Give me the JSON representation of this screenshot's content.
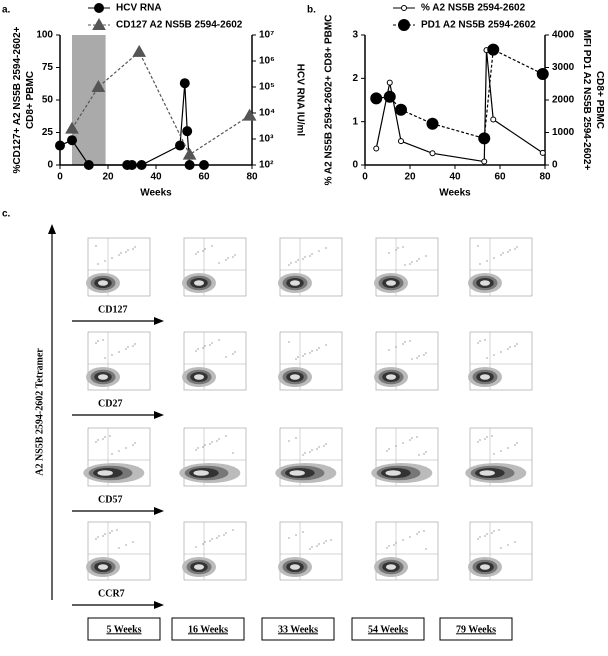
{
  "chart_data": [
    {
      "type": "line",
      "panel_label": "a.",
      "xlabel": "Weeks",
      "ylabel": [
        "%CD127+ A2 NS5B 2594-2602+",
        "CD8+ PBMC"
      ],
      "y2label": [
        "HCV RNA IU/ml"
      ],
      "xlim": [
        0,
        80
      ],
      "xticks": [
        0,
        20,
        40,
        60,
        80
      ],
      "ylim": [
        0,
        100
      ],
      "yticks": [
        0,
        25,
        50,
        75,
        100
      ],
      "y2lim": [
        100,
        10000000
      ],
      "y2log": true,
      "y2ticks": [
        {
          "value": 100,
          "label": "10²"
        },
        {
          "value": 1000,
          "label": "10³"
        },
        {
          "value": 10000,
          "label": "10⁴"
        },
        {
          "value": 100000,
          "label": "10⁵"
        },
        {
          "value": 1000000,
          "label": "10⁶"
        },
        {
          "value": 10000000,
          "label": "10⁷"
        }
      ],
      "shade": [
        5,
        19
      ],
      "shade_color": "#aaaaaa",
      "legend": "top",
      "series": [
        {
          "name": "HCV RNA",
          "axis": "y2",
          "color": "#000000",
          "marker": "circle",
          "marker_fill": "filled",
          "line_style": "solid",
          "x": [
            0,
            5,
            12,
            28,
            30,
            34,
            50,
            52,
            53,
            54,
            60
          ],
          "values": [
            560,
            900,
            100,
            100,
            100,
            100,
            560,
            140000,
            2000,
            100,
            100
          ]
        },
        {
          "name": "CD127 A2 NS5B 2594-2602",
          "color": "#555555",
          "marker": "triangle",
          "marker_fill": "filled",
          "line_style": "dashed",
          "x": [
            5,
            16,
            33,
            54,
            79
          ],
          "values": [
            28,
            60,
            87,
            8,
            38
          ]
        }
      ]
    },
    {
      "type": "line",
      "panel_label": "b.",
      "xlabel": "Weeks",
      "ylabel": [
        "% A2 NS5B 2594-2602+ CD8+ PBMC"
      ],
      "y2label": [
        "MFI PD1 A2 NS5B 2594-2602+",
        "CD8+ PBMC"
      ],
      "xlim": [
        0,
        80
      ],
      "xticks": [
        0,
        20,
        40,
        60,
        80
      ],
      "ylim": [
        0,
        3
      ],
      "yticks": [
        0,
        1,
        2,
        3
      ],
      "y2lim": [
        0,
        4000
      ],
      "y2ticks": [
        0,
        1000,
        2000,
        3000,
        4000
      ],
      "legend": "top",
      "series": [
        {
          "name": "% A2 NS5B 2594-2602",
          "color": "#000000",
          "marker": "circle",
          "marker_fill": "open",
          "line_style": "solid",
          "x": [
            5,
            11,
            16,
            30,
            53,
            54,
            57,
            79
          ],
          "values": [
            0.38,
            1.9,
            0.55,
            0.27,
            0.08,
            2.65,
            1.05,
            0.28
          ]
        },
        {
          "name": "PD1 A2 NS5B 2594-2602",
          "axis": "y2",
          "color": "#000000",
          "marker": "circle_large",
          "marker_fill": "filled",
          "line_style": "dashed",
          "x": [
            5,
            11,
            16,
            30,
            53,
            57,
            79
          ],
          "values": [
            2050,
            2100,
            1700,
            1270,
            820,
            3550,
            2800
          ]
        }
      ]
    }
  ],
  "panel_c": {
    "label": "c.",
    "y_label": "A2 NS5B 2594-2602 Tetramer",
    "rows": [
      "CD127",
      "CD27",
      "CD57",
      "CCR7"
    ],
    "columns": [
      "5 Weeks",
      "16 Weeks",
      "33 Weeks",
      "54 Weeks",
      "79 Weeks"
    ]
  }
}
